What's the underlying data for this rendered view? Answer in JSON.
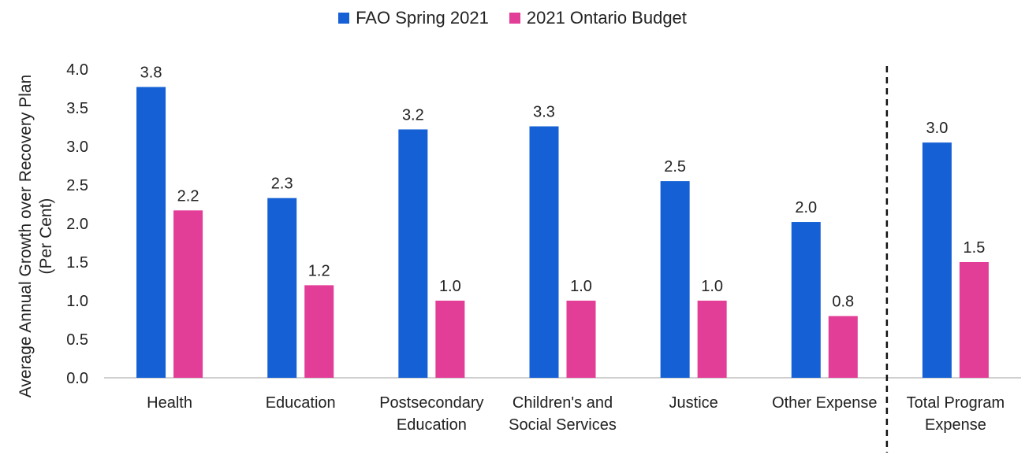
{
  "chart_data": {
    "type": "bar",
    "title": "",
    "ylabel": "Average Annual Growth over Recovery Plan (Per Cent)",
    "ylabel_lines": [
      "Average Annual Growth over Recovery Plan",
      "(Per Cent)"
    ],
    "xlabel": "",
    "ylim": [
      0,
      4.0
    ],
    "yticks": [
      "0.0",
      "0.5",
      "1.0",
      "1.5",
      "2.0",
      "2.5",
      "3.0",
      "3.5",
      "4.0"
    ],
    "categories": [
      [
        "Health"
      ],
      [
        "Education"
      ],
      [
        "Postsecondary",
        "Education"
      ],
      [
        "Children's and",
        "Social Services"
      ],
      [
        "Justice"
      ],
      [
        "Other Expense"
      ],
      [
        "Total Program",
        "Expense"
      ]
    ],
    "series": [
      {
        "name": "FAO Spring 2021",
        "color": "#1560d4",
        "values": [
          3.77,
          2.33,
          3.22,
          3.26,
          2.55,
          2.02,
          3.05
        ],
        "labels": [
          "3.8",
          "2.3",
          "3.2",
          "3.3",
          "2.5",
          "2.0",
          "3.0"
        ]
      },
      {
        "name": "2021 Ontario Budget",
        "color": "#e23d97",
        "values": [
          2.17,
          1.2,
          1.0,
          1.0,
          1.0,
          0.8,
          1.5
        ],
        "labels": [
          "2.2",
          "1.2",
          "1.0",
          "1.0",
          "1.0",
          "0.8",
          "1.5"
        ]
      }
    ],
    "separator": "dashed line before Total Program Expense",
    "grid": false,
    "legend_position": "top-center"
  }
}
